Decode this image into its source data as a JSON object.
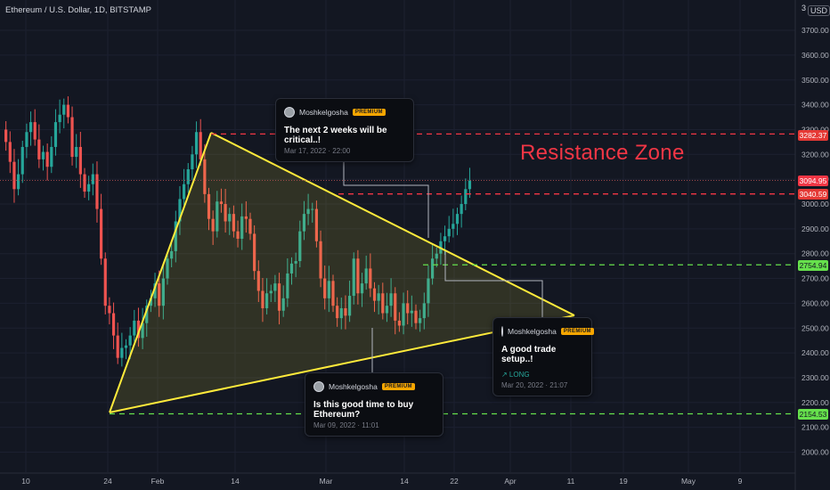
{
  "header": {
    "symbol_title": "Ethereum / U.S. Dollar, 1D, BITSTAMP",
    "currency": "USD",
    "currency_prefix": "3"
  },
  "price_axis": {
    "labels": [
      "3700.00",
      "3600.00",
      "3500.00",
      "3400.00",
      "3300.00",
      "3200.00",
      "3100.00",
      "3000.00",
      "2900.00",
      "2800.00",
      "2700.00",
      "2600.00",
      "2500.00",
      "2400.00",
      "2300.00",
      "2200.00",
      "2100.00",
      "2000.00"
    ],
    "values": [
      3700,
      3600,
      3500,
      3400,
      3300,
      3200,
      3100,
      3000,
      2900,
      2800,
      2700,
      2600,
      2500,
      2400,
      2300,
      2200,
      2100,
      2000
    ]
  },
  "time_axis": {
    "labels": [
      "10",
      "24",
      "Feb",
      "14",
      "Mar",
      "14",
      "22",
      "Apr",
      "11",
      "19",
      "May",
      "9"
    ]
  },
  "price_tags": [
    {
      "label": "3282.37",
      "value": 3282.37,
      "style": "red"
    },
    {
      "label": "3094.95",
      "value": 3094.95,
      "style": "redbold"
    },
    {
      "label": "3040.59",
      "value": 3040.59,
      "style": "red"
    },
    {
      "label": "2754.94",
      "value": 2754.94,
      "style": "green"
    },
    {
      "label": "2154.53",
      "value": 2154.53,
      "style": "green"
    }
  ],
  "annotation": {
    "resistance_label": "Resistance Zone"
  },
  "ideas": [
    {
      "author": "Moshkelgosha",
      "badge": "PREMIUM",
      "message": "The next 2 weeks will be critical..!",
      "date": "Mar 17, 2022 · 22:00"
    },
    {
      "author": "Moshkelgosha",
      "badge": "PREMIUM",
      "message": "Is this good time to buy Ethereum?",
      "date": "Mar 09, 2022 · 11:01"
    },
    {
      "author": "Moshkelgosha",
      "badge": "PREMIUM",
      "message": "A good trade setup..!",
      "long_label": "↗ LONG",
      "date": "Mar 20, 2022 · 21:07"
    }
  ],
  "colors": {
    "background": "#131722",
    "up": "#26a69a",
    "down": "#ef5350",
    "resistance": "#f23645",
    "support": "#66e04c",
    "triangle": "#ffeb3b"
  }
}
